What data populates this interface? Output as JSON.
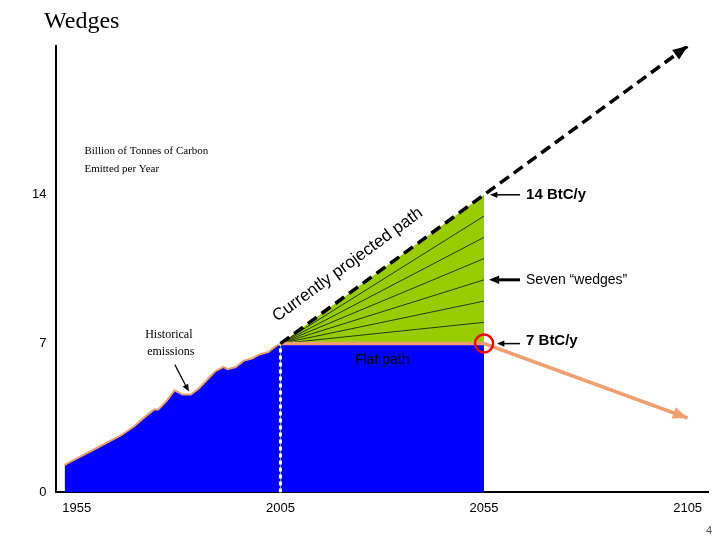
{
  "page_number": "4",
  "chart_data": {
    "type": "line",
    "title": "Wedges",
    "y_label": [
      "Billion of Tonnes of Carbon",
      "Emitted per Year"
    ],
    "xlim": [
      1950,
      2110
    ],
    "xticks": [
      1955,
      2005,
      2055,
      2105
    ],
    "ylim": [
      0,
      21
    ],
    "yticks": [
      0,
      7,
      14
    ],
    "grid": false,
    "series": [
      {
        "type": "area",
        "color": "#0000ff",
        "line_style": "solid",
        "x": [
          1952,
          1955,
          1958,
          1960,
          1963,
          1966,
          1969,
          1972,
          1974,
          1975,
          1977,
          1979,
          1981,
          1983,
          1985,
          1987,
          1989,
          1991,
          1992,
          1994,
          1996,
          1998,
          2000,
          2002,
          2004,
          2005
        ],
        "values": [
          1.3,
          1.6,
          1.9,
          2.1,
          2.4,
          2.7,
          3.1,
          3.6,
          3.9,
          3.9,
          4.3,
          4.8,
          4.6,
          4.6,
          4.9,
          5.3,
          5.7,
          5.9,
          5.8,
          5.9,
          6.2,
          6.3,
          6.5,
          6.6,
          6.9,
          7.0
        ]
      },
      {
        "type": "area",
        "color": "#99cc00",
        "x": [
          2005,
          2055
        ],
        "values": [
          7,
          14
        ]
      },
      {
        "type": "area",
        "color": "#0000ff",
        "x": [
          2005,
          2055
        ],
        "values": [
          7,
          7
        ]
      },
      {
        "type": "line",
        "color": "#1f3d0f",
        "x": [
          2005,
          2055
        ],
        "values": [
          7,
          8
        ]
      },
      {
        "type": "line",
        "color": "#1f3d0f",
        "x": [
          2005,
          2055
        ],
        "values": [
          7,
          9
        ]
      },
      {
        "type": "line",
        "color": "#1f3d0f",
        "x": [
          2005,
          2055
        ],
        "values": [
          7,
          10
        ]
      },
      {
        "type": "line",
        "color": "#1f3d0f",
        "x": [
          2005,
          2055
        ],
        "values": [
          7,
          11
        ]
      },
      {
        "type": "line",
        "color": "#1f3d0f",
        "x": [
          2005,
          2055
        ],
        "values": [
          7,
          12
        ]
      },
      {
        "type": "line",
        "color": "#1f3d0f",
        "x": [
          2005,
          2055
        ],
        "values": [
          7,
          13
        ]
      },
      {
        "type": "line",
        "color": "#ffffff",
        "line_style": "dotted",
        "x": [
          2005,
          2005
        ],
        "values": [
          0,
          7
        ]
      },
      {
        "type": "line",
        "color": "#f0a070",
        "marker": "arrow",
        "x": [
          2005,
          2055,
          2105
        ],
        "values": [
          7,
          7,
          3.5
        ]
      },
      {
        "type": "line",
        "color": "#000000",
        "line_style": "dashed",
        "marker": "arrow",
        "x": [
          2005,
          2105
        ],
        "values": [
          7,
          21
        ]
      }
    ],
    "annotations": [
      {
        "text": "Historical emissions",
        "x": 1983,
        "y": 4.6
      },
      {
        "text": "Currently projected path",
        "x": 2025,
        "y": 9.8
      },
      {
        "text": "14 BtC/y",
        "x": 2055,
        "y": 14
      },
      {
        "text": "Seven “wedges”",
        "x": 2055,
        "y": 10
      },
      {
        "text": "7 BtC/y",
        "x": 2055,
        "y": 7,
        "marker": "circle",
        "color": "#ff0000"
      },
      {
        "text": "Flat path",
        "x": 2030,
        "y": 6.2
      }
    ]
  }
}
